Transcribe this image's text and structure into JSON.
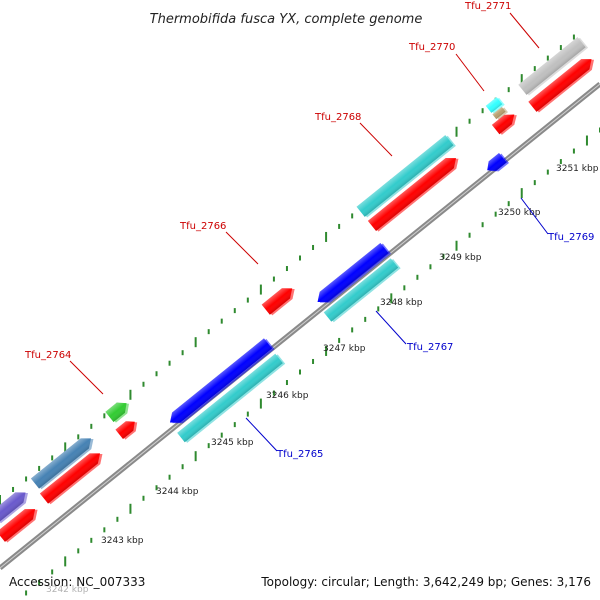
{
  "title": "Thermobifida fusca YX, complete genome",
  "footer": {
    "accession": "Accession: NC_007333",
    "summary": "Topology: circular; Length: 3,642,249 bp; Genes: 3,176"
  },
  "colors": {
    "backbone": "#8a8a8a",
    "tick": "#2f8a2f",
    "forward_label": "#cc0000",
    "reverse_label": "#0000cc"
  },
  "kbp_labels": [
    "3242 kbp",
    "3243 kbp",
    "3244 kbp",
    "3245 kbp",
    "3246 kbp",
    "3247 kbp",
    "3248 kbp",
    "3249 kbp",
    "3250 kbp",
    "3251 kbp"
  ],
  "gene_labels": [
    {
      "text": "Tfu_2764",
      "strand": "forward"
    },
    {
      "text": "Tfu_2765",
      "strand": "reverse"
    },
    {
      "text": "Tfu_2766",
      "strand": "forward"
    },
    {
      "text": "Tfu_2767",
      "strand": "reverse"
    },
    {
      "text": "Tfu_2768",
      "strand": "forward"
    },
    {
      "text": "Tfu_2769",
      "strand": "reverse"
    },
    {
      "text": "Tfu_2770",
      "strand": "forward"
    },
    {
      "text": "Tfu_2771",
      "strand": "forward"
    }
  ],
  "features": [
    {
      "name": "feature-purple-left",
      "color": "#6a5acd",
      "type": "gene"
    },
    {
      "name": "feature-red-left",
      "color": "#ff0000",
      "type": "cds"
    },
    {
      "name": "feature-steelblue",
      "color": "#4682b4",
      "type": "gene"
    },
    {
      "name": "feature-red-2",
      "color": "#ff0000",
      "type": "cds"
    },
    {
      "name": "feature-green-tfu2764",
      "color": "#33cc33",
      "type": "gene"
    },
    {
      "name": "feature-red-tfu2764",
      "color": "#ff0000",
      "type": "cds"
    },
    {
      "name": "feature-blue-tfu2765",
      "color": "#0000ff",
      "type": "gene"
    },
    {
      "name": "feature-cyan-tfu2765",
      "color": "#33cccc",
      "type": "cds"
    },
    {
      "name": "feature-red-tfu2766",
      "color": "#ff0000",
      "type": "cds"
    },
    {
      "name": "feature-blue-tfu2767",
      "color": "#0000ff",
      "type": "gene"
    },
    {
      "name": "feature-cyan-tfu2767",
      "color": "#33cccc",
      "type": "cds"
    },
    {
      "name": "feature-cyan-tfu2768",
      "color": "#33cccc",
      "type": "gene"
    },
    {
      "name": "feature-red-tfu2768",
      "color": "#ff0000",
      "type": "cds"
    },
    {
      "name": "feature-blue-tfu2769",
      "color": "#0000ff",
      "type": "gene"
    },
    {
      "name": "feature-cyan-tfu2770",
      "color": "#33ffff",
      "type": "gene"
    },
    {
      "name": "feature-tan-tfu2770",
      "color": "#b8a070",
      "type": "other"
    },
    {
      "name": "feature-red-tfu2770",
      "color": "#ff0000",
      "type": "cds"
    },
    {
      "name": "feature-grey-tfu2771",
      "color": "#c0c0c0",
      "type": "gene"
    },
    {
      "name": "feature-red-tfu2771",
      "color": "#ff0000",
      "type": "cds"
    }
  ]
}
